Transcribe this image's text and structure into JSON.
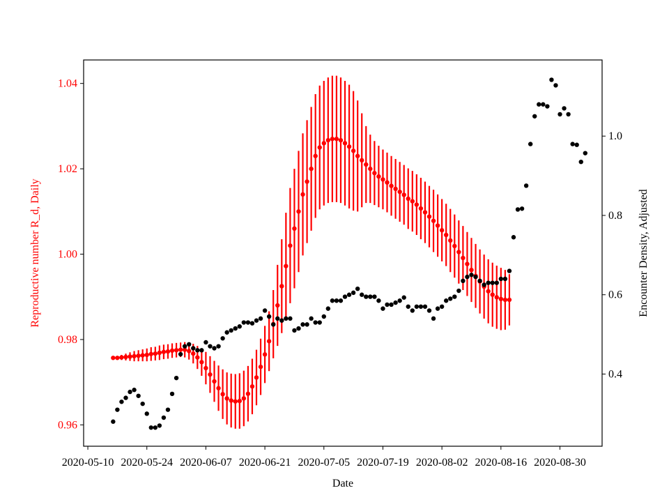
{
  "chart_data": {
    "type": "scatter",
    "title": "",
    "xlabel": "Date",
    "ylabel_left": "Reproductive number R_d, Daily",
    "ylabel_right": "Encounter Density, Adjusted",
    "colors": {
      "left": "#ff0000",
      "right": "#000000"
    },
    "x_ticks": [
      "2020-05-10",
      "2020-05-24",
      "2020-06-07",
      "2020-06-21",
      "2020-07-05",
      "2020-07-19",
      "2020-08-02",
      "2020-08-16",
      "2020-08-30"
    ],
    "ylim_left": [
      0.955,
      1.0455
    ],
    "yticks_left": [
      "0.96",
      "0.98",
      "1.00",
      "1.02",
      "1.04"
    ],
    "ylim_right": [
      0.218,
      1.192
    ],
    "yticks_right": [
      "0.4",
      "0.6",
      "0.8",
      "1.0"
    ],
    "xlim": [
      "2020-05-09",
      "2020-09-09"
    ],
    "grid": false,
    "series": [
      {
        "axis": "left",
        "start_date": "2020-05-16",
        "values": [
          0.9757,
          0.9757,
          0.9758,
          0.9759,
          0.976,
          0.9761,
          0.9762,
          0.9763,
          0.9764,
          0.9766,
          0.9767,
          0.9769,
          0.9771,
          0.9772,
          0.9774,
          0.9775,
          0.9776,
          0.9776,
          0.9773,
          0.9767,
          0.9758,
          0.9747,
          0.9733,
          0.9718,
          0.9702,
          0.9686,
          0.9672,
          0.9662,
          0.9657,
          0.9655,
          0.9656,
          0.9662,
          0.9673,
          0.969,
          0.9711,
          0.9736,
          0.9765,
          0.9796,
          0.9836,
          0.988,
          0.9925,
          0.9972,
          1.002,
          1.006,
          1.01,
          1.014,
          1.017,
          1.02,
          1.023,
          1.025,
          1.026,
          1.0267,
          1.027,
          1.027,
          1.0267,
          1.026,
          1.0252,
          1.0242,
          1.023,
          1.022,
          1.021,
          1.02,
          1.019,
          1.0182,
          1.0175,
          1.0168,
          1.016,
          1.0153,
          1.0146,
          1.0139,
          1.013,
          1.0124,
          1.0116,
          1.0107,
          1.0098,
          1.0088,
          1.0078,
          1.0067,
          1.0056,
          1.0045,
          1.0032,
          1.0019,
          1.0005,
          0.9991,
          0.9977,
          0.9963,
          0.9949,
          0.9936,
          0.9924,
          0.9913,
          0.9905,
          0.9899,
          0.9895,
          0.9893,
          0.9893
        ],
        "errors": [
          0.0003,
          0.0004,
          0.0006,
          0.0008,
          0.001,
          0.0012,
          0.0013,
          0.0014,
          0.0015,
          0.0016,
          0.0016,
          0.0017,
          0.0017,
          0.0017,
          0.0017,
          0.0017,
          0.0017,
          0.0018,
          0.002,
          0.0023,
          0.0027,
          0.0032,
          0.0038,
          0.0043,
          0.0048,
          0.0053,
          0.0058,
          0.0061,
          0.0063,
          0.0064,
          0.0065,
          0.0065,
          0.0065,
          0.0065,
          0.0065,
          0.0066,
          0.0067,
          0.007,
          0.008,
          0.0095,
          0.011,
          0.0125,
          0.0135,
          0.014,
          0.0142,
          0.0143,
          0.0144,
          0.0145,
          0.0145,
          0.0145,
          0.0146,
          0.0147,
          0.0148,
          0.0148,
          0.0147,
          0.0146,
          0.0145,
          0.014,
          0.013,
          0.011,
          0.009,
          0.008,
          0.0075,
          0.0072,
          0.007,
          0.007,
          0.007,
          0.007,
          0.007,
          0.007,
          0.0071,
          0.0071,
          0.0071,
          0.0072,
          0.0072,
          0.0072,
          0.0073,
          0.0073,
          0.0073,
          0.0073,
          0.0074,
          0.0074,
          0.0074,
          0.0075,
          0.0075,
          0.0075,
          0.0075,
          0.0075,
          0.0075,
          0.0075,
          0.0075,
          0.0074,
          0.0073,
          0.007,
          0.006
        ]
      },
      {
        "axis": "right",
        "start_date": "2020-05-16",
        "values": [
          0.28,
          0.31,
          0.33,
          0.34,
          0.355,
          0.36,
          0.345,
          0.325,
          0.3,
          0.265,
          0.265,
          0.27,
          0.29,
          0.31,
          0.35,
          0.39,
          0.45,
          0.47,
          0.475,
          0.465,
          0.46,
          0.46,
          0.48,
          0.47,
          0.465,
          0.47,
          0.49,
          0.505,
          0.51,
          0.515,
          0.52,
          0.53,
          0.53,
          0.528,
          0.535,
          0.54,
          0.56,
          0.545,
          0.525,
          0.54,
          0.535,
          0.54,
          0.54,
          0.51,
          0.515,
          0.525,
          0.525,
          0.54,
          0.53,
          0.53,
          0.545,
          0.565,
          0.585,
          0.585,
          0.585,
          0.595,
          0.6,
          0.605,
          0.615,
          0.6,
          0.595,
          0.595,
          0.595,
          0.585,
          0.565,
          0.575,
          0.575,
          0.58,
          0.585,
          0.593,
          0.57,
          0.56,
          0.57,
          0.57,
          0.57,
          0.56,
          0.54,
          0.565,
          0.57,
          0.585,
          0.59,
          0.595,
          0.61,
          0.635,
          0.645,
          0.65,
          0.645,
          0.635,
          0.625,
          0.63,
          0.63,
          0.63,
          0.64,
          0.64,
          0.66,
          0.745,
          0.815,
          0.817,
          0.875,
          0.98,
          1.05,
          1.08,
          1.08,
          1.075,
          1.142,
          1.128,
          1.055,
          1.07,
          1.055,
          0.98,
          0.978,
          0.935,
          0.957
        ]
      }
    ]
  }
}
